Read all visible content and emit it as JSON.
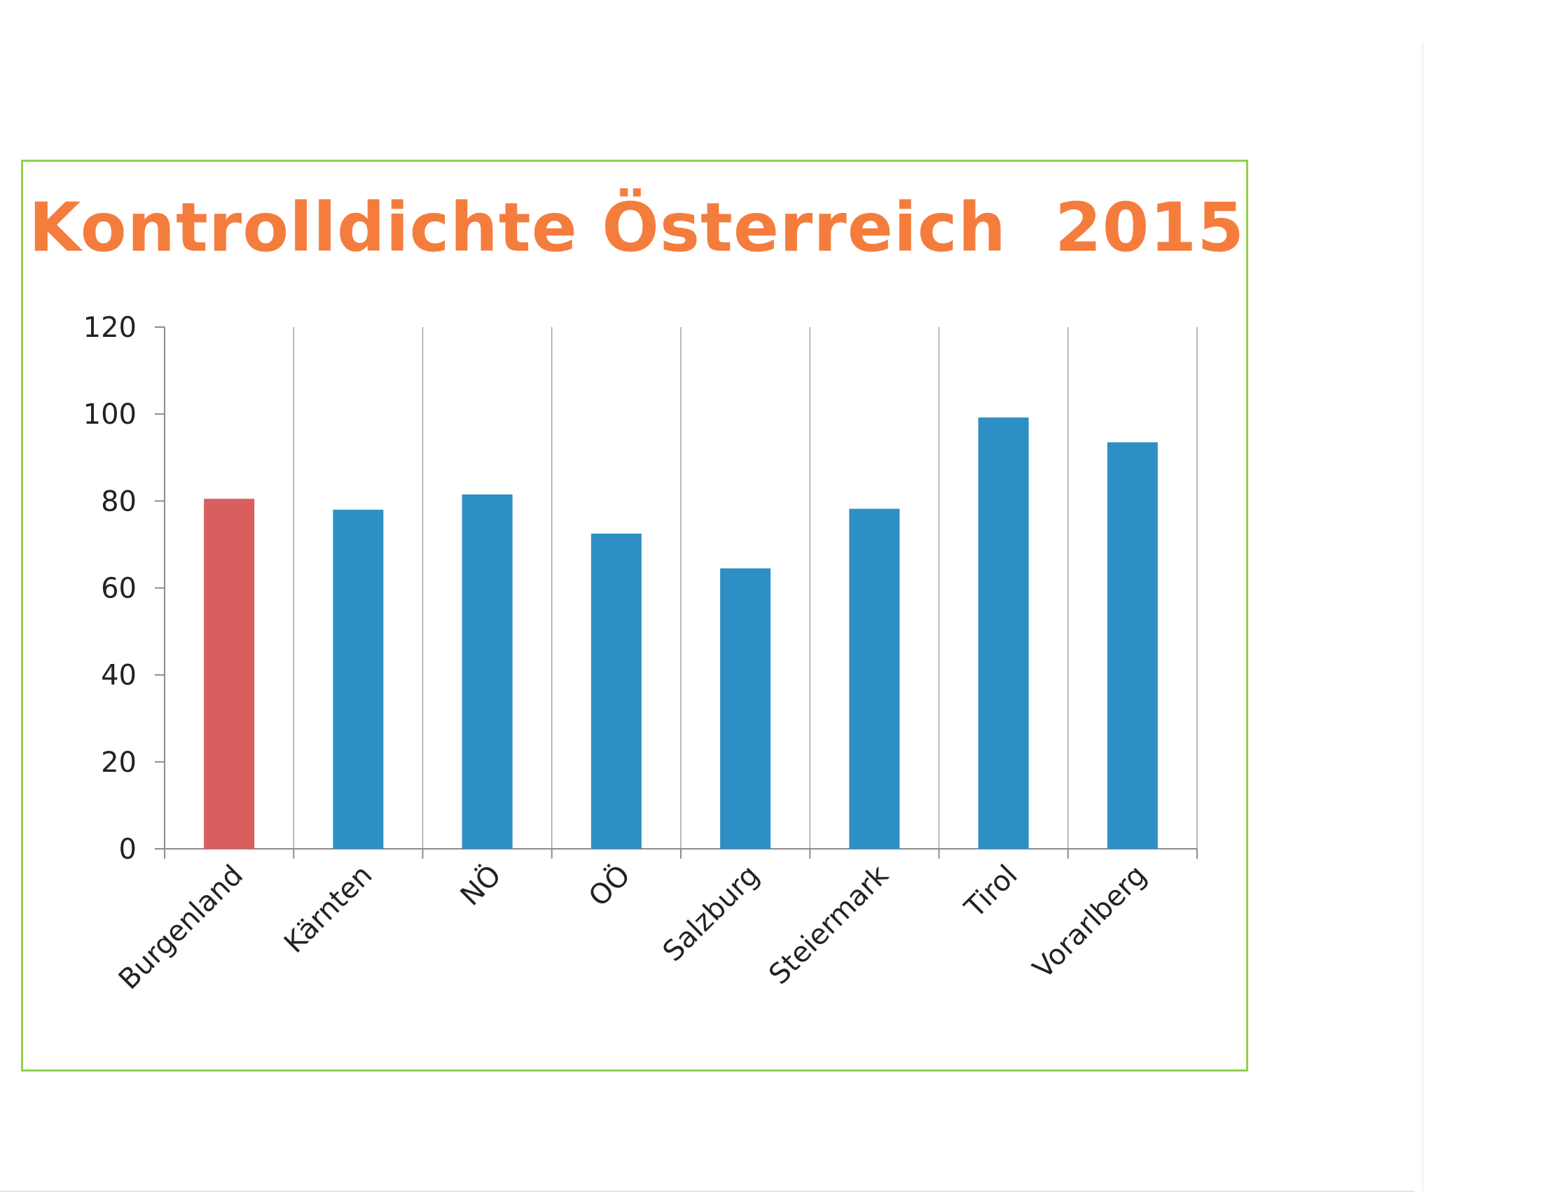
{
  "chart_data": {
    "type": "bar",
    "title": "Kontrolldichte Österreich  2015",
    "categories": [
      "Burgenland",
      "Kärnten",
      "NÖ",
      "OÖ",
      "Salzburg",
      "Steiermark",
      "Tirol",
      "Vorarlberg"
    ],
    "values": [
      80.5,
      78,
      81.5,
      72.5,
      64.5,
      78.2,
      99.2,
      93.5
    ],
    "highlight_category": "Burgenland",
    "colors": {
      "bar": "#2e8fc5",
      "highlight": "#d95f5f",
      "title": "#f47d3e",
      "frame": "#8fd14f",
      "grid": "#a6a6a6"
    },
    "ylim": [
      0,
      120
    ],
    "yticks": [
      0,
      20,
      40,
      60,
      80,
      100,
      120
    ],
    "grid": "vertical",
    "legend": "none"
  }
}
